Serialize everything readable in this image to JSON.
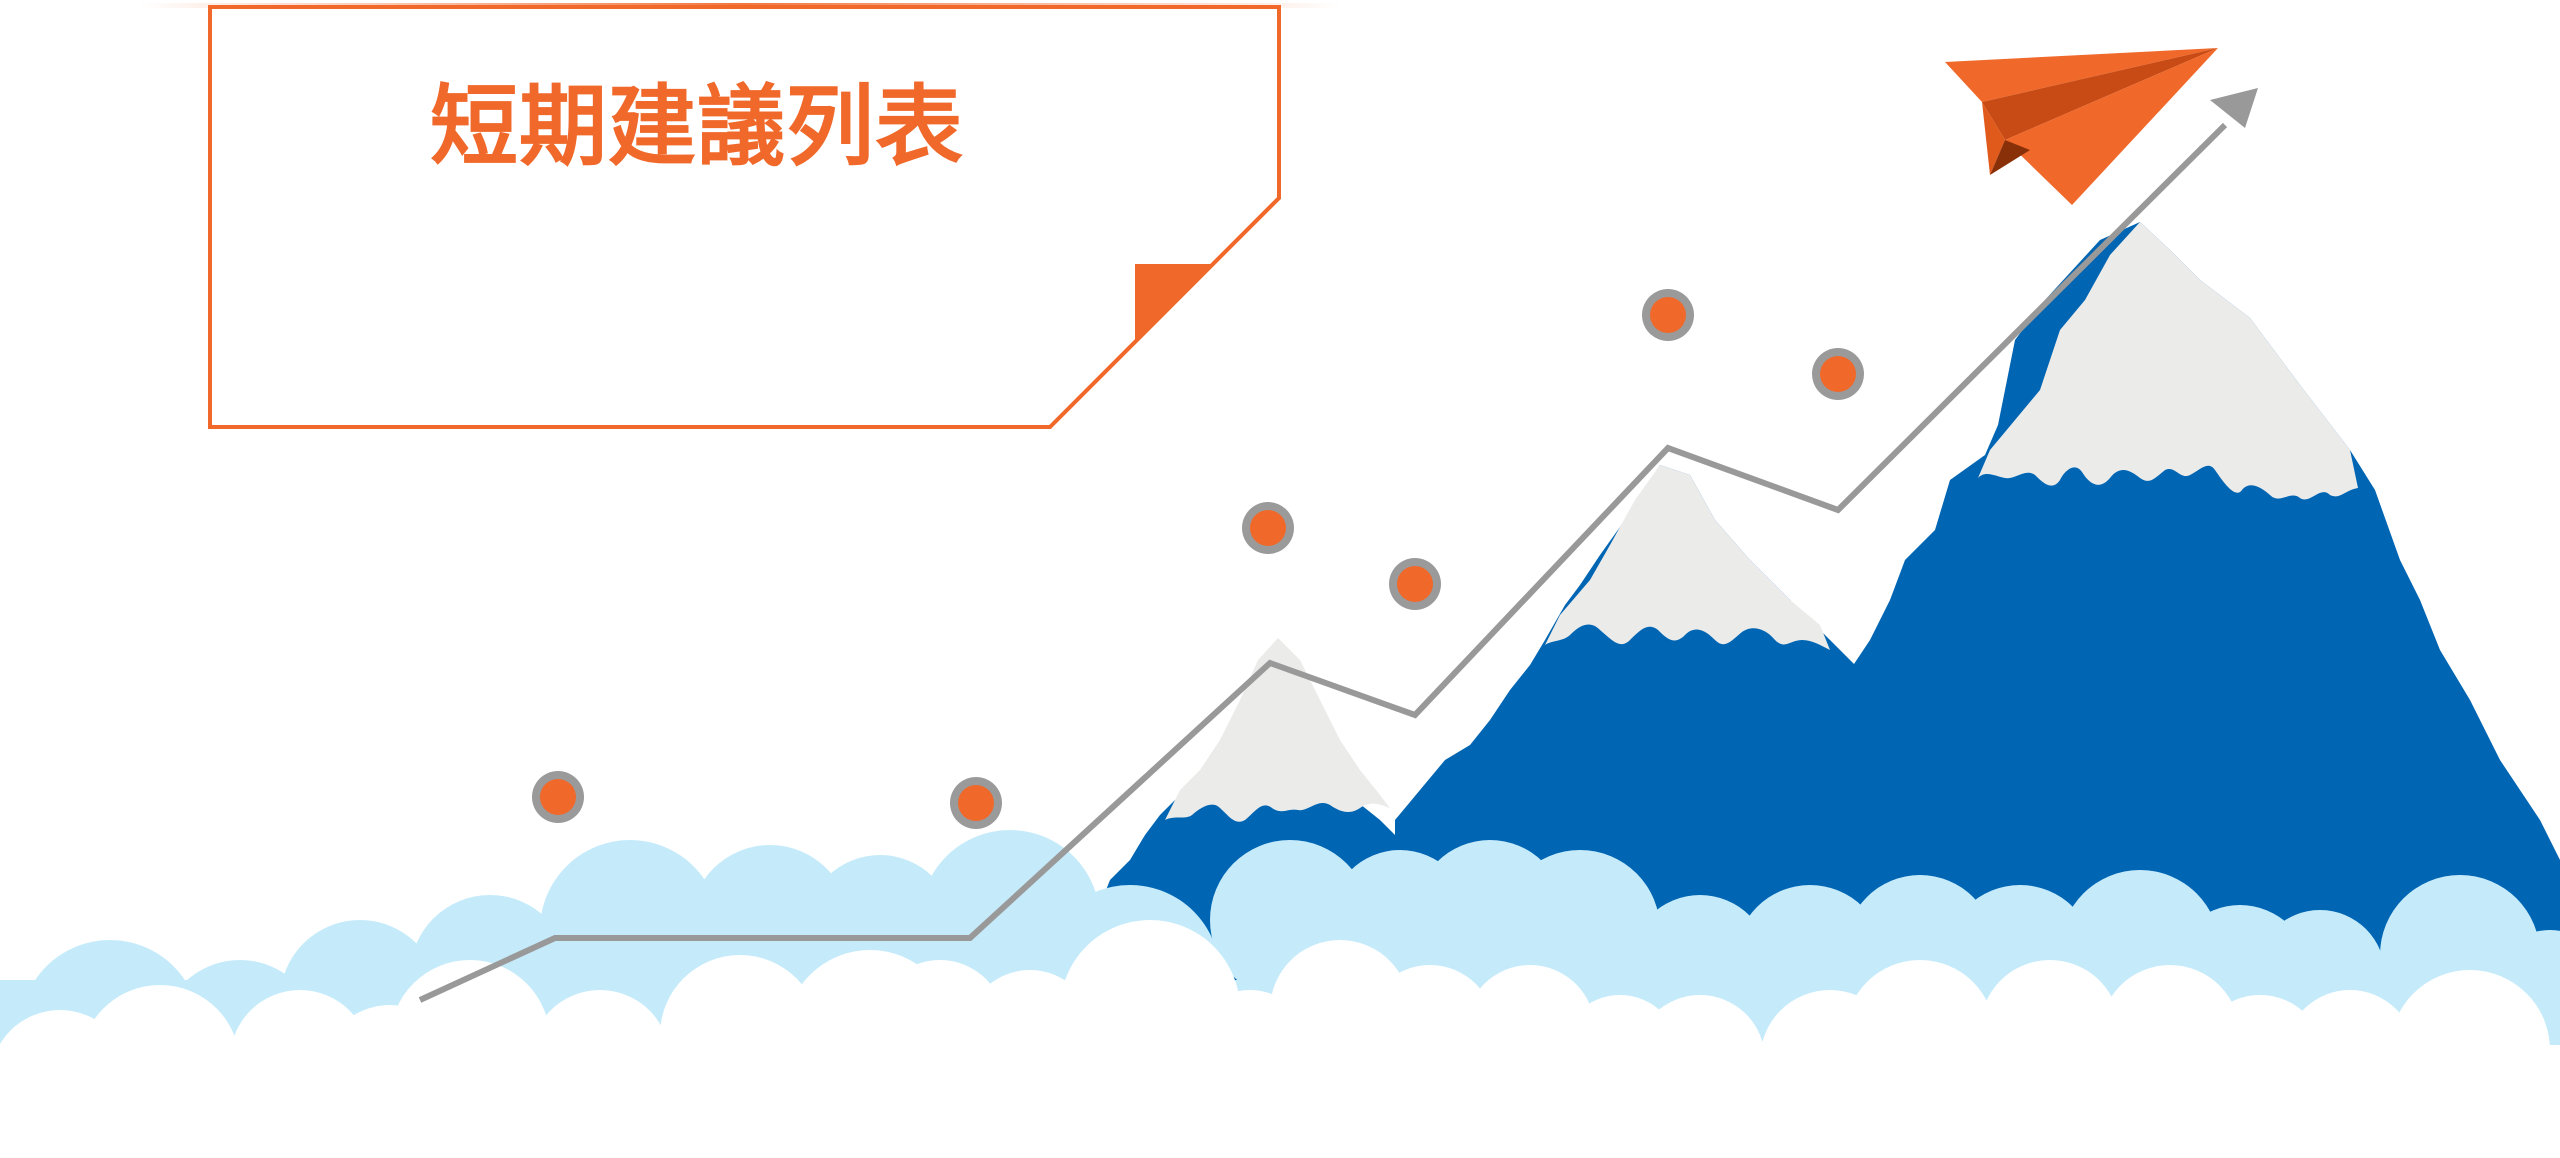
{
  "slide": {
    "title": "短期建議列表"
  },
  "colors": {
    "accent_orange": "#f0682a",
    "mountain_blue": "#0065b3",
    "snow": "#ebebea",
    "cloud_light_blue": "#c5ebfb",
    "cloud_white": "#ffffff",
    "trend_line_gray": "#999999"
  },
  "icons": {
    "paper_plane": "paper-plane-icon",
    "trend_arrow": "trend-arrow-icon"
  }
}
